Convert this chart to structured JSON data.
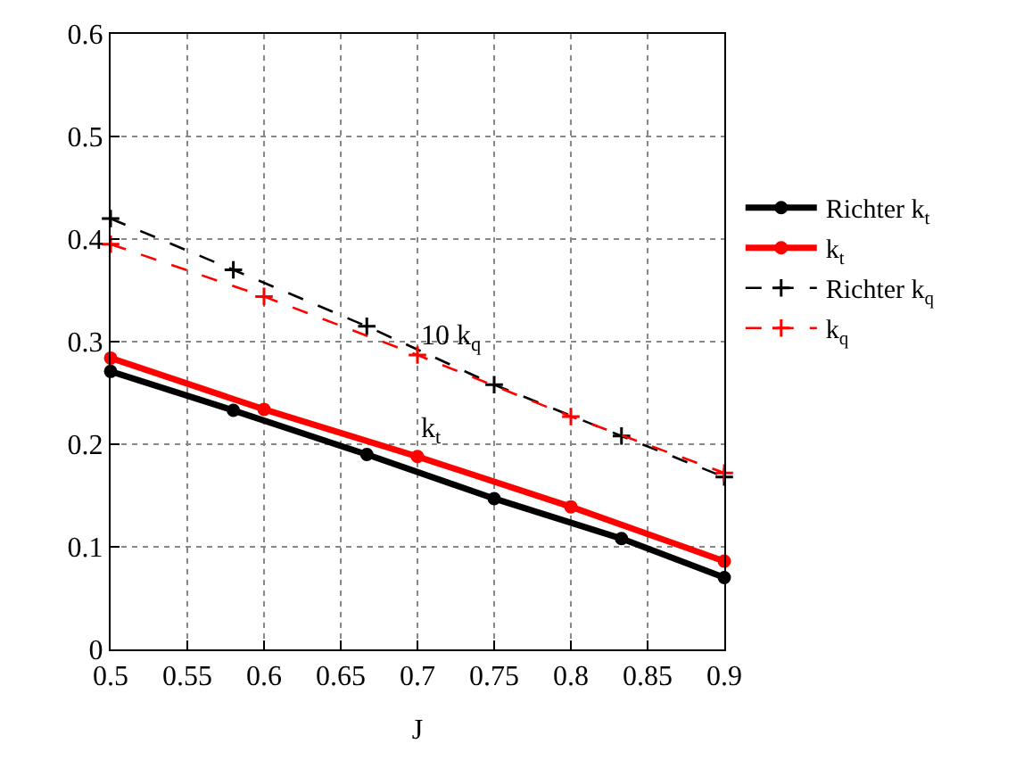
{
  "chart_data": {
    "type": "line",
    "xlabel": "J",
    "xlim": [
      0.5,
      0.9
    ],
    "xticks": [
      0.5,
      0.55,
      0.6,
      0.65,
      0.7,
      0.75,
      0.8,
      0.85,
      0.9
    ],
    "ylim": [
      0,
      0.6
    ],
    "yticks": [
      0,
      0.1,
      0.2,
      0.3,
      0.4,
      0.5,
      0.6
    ],
    "grid": true,
    "legend": "right",
    "series": [
      {
        "name": "Richter k$_{t}$",
        "color": "#000000",
        "line_style": "solid",
        "marker": "circle",
        "x": [
          0.5,
          0.58,
          0.667,
          0.75,
          0.833,
          0.9
        ],
        "values": [
          0.271,
          0.233,
          0.19,
          0.147,
          0.108,
          0.07
        ]
      },
      {
        "name": "k$_{t}$",
        "color": "#ff0000",
        "line_style": "solid",
        "marker": "circle",
        "x": [
          0.5,
          0.6,
          0.7,
          0.8,
          0.9
        ],
        "values": [
          0.284,
          0.234,
          0.188,
          0.139,
          0.086
        ]
      },
      {
        "name": "Richter k$_{q}$",
        "color": "#000000",
        "line_style": "dashed",
        "marker": "cross",
        "x": [
          0.5,
          0.58,
          0.667,
          0.75,
          0.833,
          0.9
        ],
        "values": [
          0.42,
          0.37,
          0.315,
          0.258,
          0.208,
          0.168
        ]
      },
      {
        "name": "k$_{q}$",
        "color": "#ff0000",
        "line_style": "dashed",
        "marker": "cross",
        "x": [
          0.5,
          0.6,
          0.7,
          0.8,
          0.9
        ],
        "values": [
          0.395,
          0.344,
          0.287,
          0.227,
          0.172
        ]
      }
    ],
    "annotations": [
      "10 k$_{q}$",
      "k$_{t}$"
    ]
  }
}
